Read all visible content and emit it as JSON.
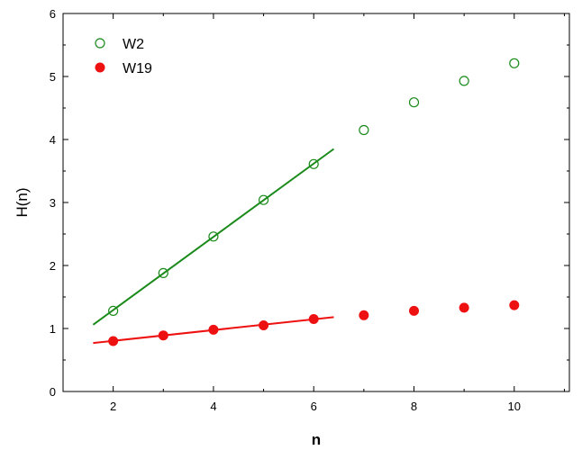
{
  "chart_data": {
    "type": "scatter",
    "xlabel": "n",
    "ylabel": "H(n)",
    "xlim": [
      1,
      11.1
    ],
    "ylim": [
      0,
      6
    ],
    "xticks": [
      2,
      4,
      6,
      8,
      10
    ],
    "yticks": [
      0,
      1,
      2,
      3,
      4,
      5,
      6
    ],
    "grid": false,
    "legend_position": "top-left",
    "series": [
      {
        "name": "W2",
        "marker": "open-circle",
        "color": "#1a8a1a",
        "x": [
          2,
          3,
          4,
          5,
          6,
          7,
          8,
          9,
          10
        ],
        "y": [
          1.28,
          1.88,
          2.46,
          3.04,
          3.61,
          4.15,
          4.59,
          4.93,
          5.21
        ],
        "fit": {
          "x": [
            1.6,
            6.4
          ],
          "y": [
            1.06,
            3.85
          ]
        }
      },
      {
        "name": "W19",
        "marker": "filled-circle",
        "color": "#ee1111",
        "x": [
          2,
          3,
          4,
          5,
          6,
          7,
          8,
          9,
          10
        ],
        "y": [
          0.8,
          0.89,
          0.98,
          1.05,
          1.15,
          1.21,
          1.28,
          1.33,
          1.37
        ],
        "fit": {
          "x": [
            1.6,
            6.4
          ],
          "y": [
            0.77,
            1.18
          ]
        }
      }
    ]
  }
}
